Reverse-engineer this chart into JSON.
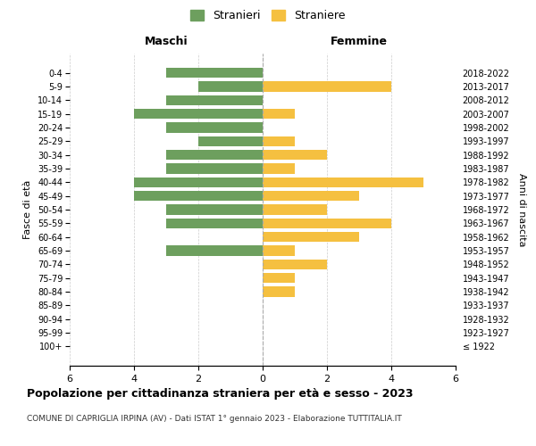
{
  "age_groups": [
    "100+",
    "95-99",
    "90-94",
    "85-89",
    "80-84",
    "75-79",
    "70-74",
    "65-69",
    "60-64",
    "55-59",
    "50-54",
    "45-49",
    "40-44",
    "35-39",
    "30-34",
    "25-29",
    "20-24",
    "15-19",
    "10-14",
    "5-9",
    "0-4"
  ],
  "birth_years": [
    "≤ 1922",
    "1923-1927",
    "1928-1932",
    "1933-1937",
    "1938-1942",
    "1943-1947",
    "1948-1952",
    "1953-1957",
    "1958-1962",
    "1963-1967",
    "1968-1972",
    "1973-1977",
    "1978-1982",
    "1983-1987",
    "1988-1992",
    "1993-1997",
    "1998-2002",
    "2003-2007",
    "2008-2012",
    "2013-2017",
    "2018-2022"
  ],
  "maschi": [
    0,
    0,
    0,
    0,
    0,
    0,
    0,
    3,
    0,
    3,
    3,
    4,
    4,
    3,
    3,
    2,
    3,
    4,
    3,
    2,
    3
  ],
  "femmine": [
    0,
    0,
    0,
    0,
    1,
    1,
    2,
    1,
    3,
    4,
    2,
    3,
    5,
    1,
    2,
    1,
    0,
    1,
    0,
    4,
    0
  ],
  "color_maschi": "#6d9f5e",
  "color_femmine": "#f5c040",
  "title": "Popolazione per cittadinanza straniera per età e sesso - 2023",
  "subtitle": "COMUNE DI CAPRIGLIA IRPINA (AV) - Dati ISTAT 1° gennaio 2023 - Elaborazione TUTTITALIA.IT",
  "xlabel_left": "Maschi",
  "xlabel_right": "Femmine",
  "ylabel_left": "Fasce di età",
  "ylabel_right": "Anni di nascita",
  "legend_maschi": "Stranieri",
  "legend_femmine": "Straniere",
  "xlim": 6,
  "background_color": "#ffffff",
  "grid_color": "#cccccc"
}
